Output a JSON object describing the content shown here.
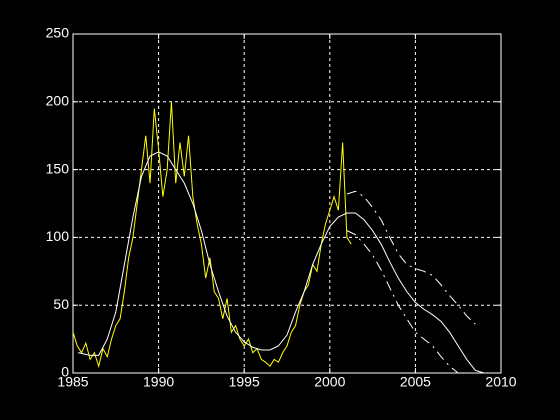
{
  "chart_data": {
    "type": "line",
    "xlim": [
      1985,
      2010
    ],
    "xticks": [
      1985,
      1990,
      1995,
      2000,
      2005,
      2010
    ],
    "ylim": [
      0,
      250
    ],
    "yticks": [
      0,
      50,
      100,
      150,
      200,
      250
    ],
    "grid": true,
    "series": [
      {
        "color": "#ffff00",
        "dash": false,
        "x": [
          1985.0,
          1985.25,
          1985.5,
          1985.75,
          1986.0,
          1986.25,
          1986.5,
          1986.75,
          1987.0,
          1987.25,
          1987.5,
          1987.75,
          1988.0,
          1988.25,
          1988.5,
          1988.75,
          1989.0,
          1989.25,
          1989.5,
          1989.75,
          1990.0,
          1990.25,
          1990.5,
          1990.75,
          1991.0,
          1991.25,
          1991.5,
          1991.75,
          1992.0,
          1992.25,
          1992.5,
          1992.75,
          1993.0,
          1993.25,
          1993.5,
          1993.75,
          1994.0,
          1994.25,
          1994.5,
          1994.75,
          1995.0,
          1995.25,
          1995.5,
          1995.75,
          1996.0,
          1996.25,
          1996.5,
          1996.75,
          1997.0,
          1997.25,
          1997.5,
          1997.75,
          1998.0,
          1998.25,
          1998.5,
          1998.75,
          1999.0,
          1999.25,
          1999.5,
          1999.75,
          2000.0,
          2000.25,
          2000.5,
          2000.75,
          2001.0,
          2001.25
        ],
        "values": [
          30,
          20,
          15,
          22,
          10,
          15,
          5,
          18,
          12,
          25,
          35,
          40,
          60,
          85,
          100,
          125,
          150,
          175,
          140,
          195,
          165,
          130,
          150,
          200,
          140,
          170,
          145,
          175,
          130,
          110,
          95,
          70,
          85,
          60,
          55,
          40,
          55,
          30,
          35,
          25,
          20,
          25,
          15,
          18,
          10,
          8,
          5,
          10,
          8,
          15,
          20,
          30,
          35,
          50,
          60,
          65,
          80,
          75,
          95,
          110,
          120,
          130,
          120,
          170,
          100,
          95
        ]
      },
      {
        "color": "#ffffff",
        "dash": false,
        "x": [
          1985.3,
          1986,
          1986.5,
          1987,
          1987.5,
          1988,
          1988.5,
          1989,
          1989.5,
          1990,
          1990.5,
          1991,
          1991.5,
          1992,
          1992.5,
          1993,
          1993.5,
          1994,
          1994.5,
          1995,
          1995.5,
          1996,
          1996.5,
          1997,
          1997.5,
          1998,
          1998.5,
          1999,
          1999.5,
          2000,
          2000.5,
          2001,
          2001.5,
          2002,
          2002.5,
          2003,
          2003.5,
          2004,
          2004.5,
          2005,
          2005.5,
          2006,
          2006.5,
          2007,
          2007.5,
          2008,
          2008.5,
          2009
        ],
        "values": [
          15,
          13,
          13,
          25,
          45,
          80,
          115,
          145,
          160,
          163,
          160,
          150,
          140,
          125,
          105,
          80,
          60,
          42,
          30,
          23,
          19,
          17,
          17,
          20,
          28,
          45,
          60,
          80,
          95,
          108,
          115,
          118,
          118,
          113,
          105,
          95,
          82,
          70,
          60,
          52,
          47,
          43,
          38,
          30,
          20,
          10,
          2,
          0
        ]
      },
      {
        "color": "#ffffff",
        "dash": true,
        "x": [
          2001,
          2001.5,
          2002,
          2002.5,
          2003,
          2003.5,
          2004,
          2004.5,
          2005,
          2005.5,
          2006,
          2006.5,
          2007,
          2007.5,
          2008,
          2008.5
        ],
        "values": [
          132,
          134,
          130,
          122,
          113,
          100,
          88,
          80,
          77,
          75,
          72,
          65,
          57,
          50,
          42,
          36
        ]
      },
      {
        "color": "#ffffff",
        "dash": true,
        "x": [
          2001,
          2001.5,
          2002,
          2002.5,
          2003,
          2003.5,
          2004,
          2004.5,
          2005,
          2005.5,
          2006,
          2006.5,
          2007,
          2007.5
        ],
        "values": [
          105,
          102,
          95,
          87,
          76,
          63,
          50,
          40,
          30,
          25,
          20,
          12,
          5,
          0
        ]
      }
    ]
  }
}
